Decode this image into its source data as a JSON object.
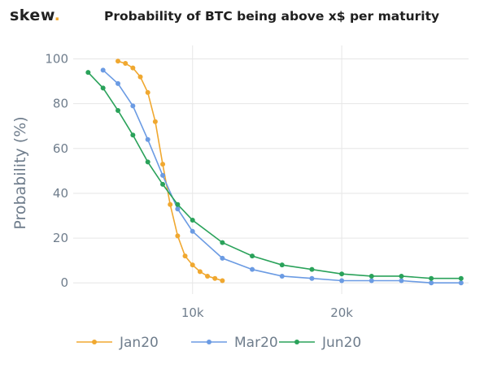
{
  "logo": {
    "text": "skew",
    "dot": "."
  },
  "chart_data": {
    "type": "line",
    "title": "Probability of BTC being above x$ per maturity",
    "xlabel": "",
    "ylabel": "Probability (%)",
    "xlim": [
      2000,
      28500
    ],
    "ylim": [
      -5,
      106
    ],
    "xticks": [
      {
        "value": 10000,
        "label": "10k"
      },
      {
        "value": 20000,
        "label": "20k"
      }
    ],
    "yticks": [
      {
        "value": 0,
        "label": "0"
      },
      {
        "value": 20,
        "label": "20"
      },
      {
        "value": 40,
        "label": "40"
      },
      {
        "value": 60,
        "label": "60"
      },
      {
        "value": 80,
        "label": "80"
      },
      {
        "value": 100,
        "label": "100"
      }
    ],
    "grid": true,
    "legend_position": "bottom",
    "series": [
      {
        "name": "Jan20",
        "color": "#f0a830",
        "x": [
          5000,
          5500,
          6000,
          6500,
          7000,
          7500,
          8000,
          8500,
          9000,
          9500,
          10000,
          10500,
          11000,
          11500,
          12000
        ],
        "y": [
          99,
          98,
          96,
          92,
          85,
          72,
          53,
          35,
          21,
          12,
          8,
          5,
          3,
          2,
          1
        ]
      },
      {
        "name": "Mar20",
        "color": "#6b9be3",
        "x": [
          4000,
          5000,
          6000,
          7000,
          8000,
          9000,
          10000,
          12000,
          14000,
          16000,
          18000,
          20000,
          22000,
          24000,
          26000,
          28000
        ],
        "y": [
          95,
          89,
          79,
          64,
          48,
          33,
          23,
          11,
          6,
          3,
          2,
          1,
          1,
          1,
          0,
          0
        ]
      },
      {
        "name": "Jun20",
        "color": "#2aa25a",
        "x": [
          3000,
          4000,
          5000,
          6000,
          7000,
          8000,
          9000,
          10000,
          12000,
          14000,
          16000,
          18000,
          20000,
          22000,
          24000,
          26000,
          28000
        ],
        "y": [
          94,
          87,
          77,
          66,
          54,
          44,
          35,
          28,
          18,
          12,
          8,
          6,
          4,
          3,
          3,
          2,
          2
        ]
      }
    ]
  }
}
